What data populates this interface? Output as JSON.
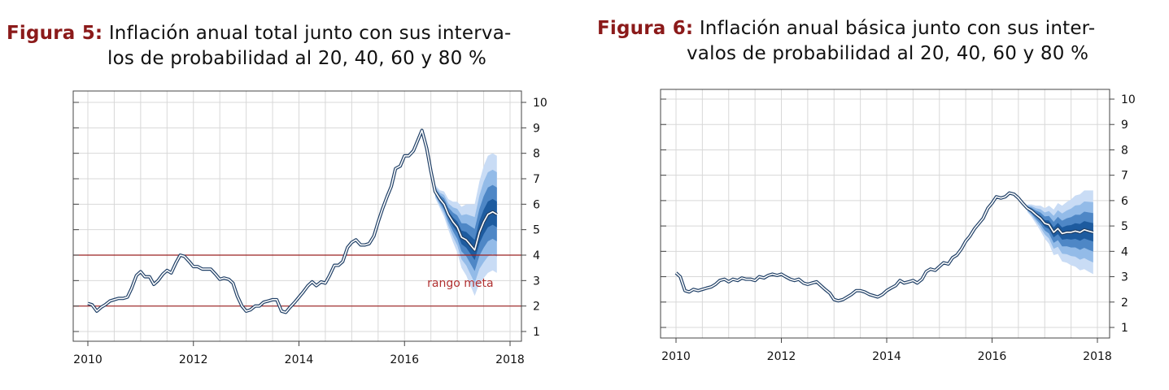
{
  "figures": [
    {
      "caption_label": "Figura 5:",
      "caption_line1": "Inflación anual total junto con sus interva-",
      "caption_line2": "los de probabilidad al 20, 40, 60 y 80 %",
      "chart_data": {
        "type": "line",
        "x_ticks": [
          2010,
          2012,
          2014,
          2016,
          2018
        ],
        "y_ticks": [
          1,
          2,
          3,
          4,
          5,
          6,
          7,
          8,
          9,
          10
        ],
        "xlim": [
          2010,
          2018
        ],
        "ylim": [
          1,
          10
        ],
        "grid": true,
        "annotation": "rango meta",
        "reference_lines": [
          2,
          4
        ],
        "series": [
          {
            "values": [
              [
                2010.0,
                2.1
              ],
              [
                2010.08,
                2.05
              ],
              [
                2010.17,
                1.8
              ],
              [
                2010.25,
                1.95
              ],
              [
                2010.33,
                2.05
              ],
              [
                2010.42,
                2.2
              ],
              [
                2010.5,
                2.25
              ],
              [
                2010.58,
                2.3
              ],
              [
                2010.67,
                2.3
              ],
              [
                2010.75,
                2.35
              ],
              [
                2010.83,
                2.7
              ],
              [
                2010.92,
                3.2
              ],
              [
                2011.0,
                3.35
              ],
              [
                2011.08,
                3.15
              ],
              [
                2011.17,
                3.15
              ],
              [
                2011.25,
                2.85
              ],
              [
                2011.33,
                3.0
              ],
              [
                2011.42,
                3.25
              ],
              [
                2011.5,
                3.4
              ],
              [
                2011.58,
                3.3
              ],
              [
                2011.67,
                3.7
              ],
              [
                2011.75,
                4.0
              ],
              [
                2011.83,
                3.95
              ],
              [
                2011.92,
                3.75
              ],
              [
                2012.0,
                3.55
              ],
              [
                2012.08,
                3.55
              ],
              [
                2012.17,
                3.45
              ],
              [
                2012.25,
                3.45
              ],
              [
                2012.33,
                3.45
              ],
              [
                2012.42,
                3.25
              ],
              [
                2012.5,
                3.05
              ],
              [
                2012.58,
                3.1
              ],
              [
                2012.67,
                3.05
              ],
              [
                2012.75,
                2.9
              ],
              [
                2012.83,
                2.4
              ],
              [
                2012.92,
                2.0
              ],
              [
                2013.0,
                1.8
              ],
              [
                2013.08,
                1.85
              ],
              [
                2013.17,
                2.0
              ],
              [
                2013.25,
                2.0
              ],
              [
                2013.33,
                2.15
              ],
              [
                2013.42,
                2.2
              ],
              [
                2013.5,
                2.25
              ],
              [
                2013.58,
                2.25
              ],
              [
                2013.67,
                1.8
              ],
              [
                2013.75,
                1.75
              ],
              [
                2013.83,
                1.95
              ],
              [
                2013.92,
                2.15
              ],
              [
                2014.0,
                2.35
              ],
              [
                2014.08,
                2.55
              ],
              [
                2014.17,
                2.8
              ],
              [
                2014.25,
                2.95
              ],
              [
                2014.33,
                2.8
              ],
              [
                2014.42,
                2.95
              ],
              [
                2014.5,
                2.9
              ],
              [
                2014.58,
                3.2
              ],
              [
                2014.67,
                3.6
              ],
              [
                2014.75,
                3.6
              ],
              [
                2014.83,
                3.75
              ],
              [
                2014.92,
                4.3
              ],
              [
                2015.0,
                4.5
              ],
              [
                2015.08,
                4.6
              ],
              [
                2015.17,
                4.4
              ],
              [
                2015.25,
                4.4
              ],
              [
                2015.33,
                4.45
              ],
              [
                2015.42,
                4.75
              ],
              [
                2015.5,
                5.3
              ],
              [
                2015.58,
                5.8
              ],
              [
                2015.67,
                6.3
              ],
              [
                2015.75,
                6.7
              ],
              [
                2015.83,
                7.4
              ],
              [
                2015.92,
                7.5
              ],
              [
                2016.0,
                7.9
              ],
              [
                2016.08,
                7.9
              ],
              [
                2016.17,
                8.1
              ],
              [
                2016.25,
                8.5
              ],
              [
                2016.33,
                8.9
              ],
              [
                2016.42,
                8.2
              ],
              [
                2016.5,
                7.3
              ],
              [
                2016.58,
                6.5
              ],
              [
                2016.67,
                6.2
              ],
              [
                2016.75,
                6.0
              ],
              [
                2016.83,
                5.6
              ],
              [
                2016.92,
                5.3
              ],
              [
                2017.0,
                5.1
              ],
              [
                2017.08,
                4.7
              ],
              [
                2017.17,
                4.6
              ],
              [
                2017.25,
                4.4
              ],
              [
                2017.33,
                4.2
              ],
              [
                2017.42,
                4.9
              ],
              [
                2017.5,
                5.3
              ],
              [
                2017.58,
                5.6
              ],
              [
                2017.67,
                5.7
              ],
              [
                2017.75,
                5.6
              ]
            ]
          }
        ],
        "fan": {
          "x": [
            2016.58,
            2016.67,
            2016.75,
            2016.83,
            2016.92,
            2017.0,
            2017.08,
            2017.17,
            2017.25,
            2017.33,
            2017.42,
            2017.5,
            2017.58,
            2017.67,
            2017.75
          ],
          "center": [
            6.5,
            6.2,
            6.0,
            5.6,
            5.3,
            5.1,
            4.7,
            4.6,
            4.4,
            4.2,
            4.9,
            5.3,
            5.6,
            5.7,
            5.6
          ],
          "half_widths": [
            0.25,
            0.35,
            0.5,
            0.6,
            0.8,
            1.0,
            1.2,
            1.4,
            1.6,
            1.8,
            2.0,
            2.2,
            2.3,
            2.3,
            2.3
          ]
        }
      }
    },
    {
      "caption_label": "Figura 6:",
      "caption_line1": "Inflación anual básica junto con sus inter-",
      "caption_line2": "valos de probabilidad al 20, 40, 60 y 80 %",
      "chart_data": {
        "type": "line",
        "x_ticks": [
          2010,
          2012,
          2014,
          2016,
          2018
        ],
        "y_ticks": [
          1,
          2,
          3,
          4,
          5,
          6,
          7,
          8,
          9,
          10
        ],
        "xlim": [
          2010,
          2018
        ],
        "ylim": [
          1,
          10
        ],
        "grid": true,
        "series": [
          {
            "values": [
              [
                2010.0,
                3.15
              ],
              [
                2010.08,
                3.0
              ],
              [
                2010.17,
                2.45
              ],
              [
                2010.25,
                2.4
              ],
              [
                2010.33,
                2.5
              ],
              [
                2010.42,
                2.45
              ],
              [
                2010.5,
                2.5
              ],
              [
                2010.58,
                2.55
              ],
              [
                2010.67,
                2.6
              ],
              [
                2010.75,
                2.7
              ],
              [
                2010.83,
                2.85
              ],
              [
                2010.92,
                2.9
              ],
              [
                2011.0,
                2.8
              ],
              [
                2011.08,
                2.9
              ],
              [
                2011.17,
                2.85
              ],
              [
                2011.25,
                2.95
              ],
              [
                2011.33,
                2.9
              ],
              [
                2011.42,
                2.9
              ],
              [
                2011.5,
                2.85
              ],
              [
                2011.58,
                3.0
              ],
              [
                2011.67,
                2.95
              ],
              [
                2011.75,
                3.05
              ],
              [
                2011.83,
                3.1
              ],
              [
                2011.92,
                3.05
              ],
              [
                2012.0,
                3.1
              ],
              [
                2012.08,
                3.0
              ],
              [
                2012.17,
                2.9
              ],
              [
                2012.25,
                2.85
              ],
              [
                2012.33,
                2.9
              ],
              [
                2012.42,
                2.75
              ],
              [
                2012.5,
                2.7
              ],
              [
                2012.58,
                2.75
              ],
              [
                2012.67,
                2.8
              ],
              [
                2012.75,
                2.65
              ],
              [
                2012.83,
                2.5
              ],
              [
                2012.92,
                2.35
              ],
              [
                2013.0,
                2.1
              ],
              [
                2013.08,
                2.05
              ],
              [
                2013.17,
                2.1
              ],
              [
                2013.25,
                2.2
              ],
              [
                2013.33,
                2.3
              ],
              [
                2013.42,
                2.45
              ],
              [
                2013.5,
                2.45
              ],
              [
                2013.58,
                2.4
              ],
              [
                2013.67,
                2.3
              ],
              [
                2013.75,
                2.25
              ],
              [
                2013.83,
                2.2
              ],
              [
                2013.92,
                2.3
              ],
              [
                2014.0,
                2.45
              ],
              [
                2014.08,
                2.55
              ],
              [
                2014.17,
                2.65
              ],
              [
                2014.25,
                2.85
              ],
              [
                2014.33,
                2.75
              ],
              [
                2014.42,
                2.8
              ],
              [
                2014.5,
                2.85
              ],
              [
                2014.58,
                2.75
              ],
              [
                2014.67,
                2.9
              ],
              [
                2014.75,
                3.2
              ],
              [
                2014.83,
                3.3
              ],
              [
                2014.92,
                3.25
              ],
              [
                2015.0,
                3.4
              ],
              [
                2015.08,
                3.55
              ],
              [
                2015.17,
                3.5
              ],
              [
                2015.25,
                3.75
              ],
              [
                2015.33,
                3.85
              ],
              [
                2015.42,
                4.1
              ],
              [
                2015.5,
                4.4
              ],
              [
                2015.58,
                4.6
              ],
              [
                2015.67,
                4.9
              ],
              [
                2015.75,
                5.1
              ],
              [
                2015.83,
                5.3
              ],
              [
                2015.92,
                5.7
              ],
              [
                2016.0,
                5.9
              ],
              [
                2016.08,
                6.15
              ],
              [
                2016.17,
                6.1
              ],
              [
                2016.25,
                6.15
              ],
              [
                2016.33,
                6.3
              ],
              [
                2016.42,
                6.25
              ],
              [
                2016.5,
                6.1
              ],
              [
                2016.58,
                5.9
              ],
              [
                2016.67,
                5.7
              ],
              [
                2016.75,
                5.6
              ],
              [
                2016.83,
                5.45
              ],
              [
                2016.92,
                5.3
              ],
              [
                2017.0,
                5.1
              ],
              [
                2017.08,
                5.05
              ],
              [
                2017.17,
                4.75
              ],
              [
                2017.25,
                4.9
              ],
              [
                2017.33,
                4.7
              ],
              [
                2017.42,
                4.75
              ],
              [
                2017.5,
                4.75
              ],
              [
                2017.58,
                4.8
              ],
              [
                2017.67,
                4.75
              ],
              [
                2017.75,
                4.85
              ],
              [
                2017.83,
                4.8
              ],
              [
                2017.92,
                4.75
              ]
            ]
          }
        ],
        "fan": {
          "x": [
            2016.67,
            2016.75,
            2016.83,
            2016.92,
            2017.0,
            2017.08,
            2017.17,
            2017.25,
            2017.33,
            2017.42,
            2017.5,
            2017.58,
            2017.67,
            2017.75,
            2017.83,
            2017.92
          ],
          "center": [
            5.7,
            5.6,
            5.45,
            5.3,
            5.1,
            5.05,
            4.75,
            4.9,
            4.7,
            4.75,
            4.75,
            4.8,
            4.75,
            4.85,
            4.8,
            4.75
          ],
          "half_widths": [
            0.15,
            0.25,
            0.35,
            0.5,
            0.6,
            0.75,
            0.9,
            1.0,
            1.1,
            1.2,
            1.3,
            1.4,
            1.5,
            1.55,
            1.6,
            1.65
          ]
        }
      }
    }
  ],
  "colors": {
    "line_dark": "#1f3f66",
    "line_light": "#ffffff",
    "fan": [
      "#c9dcf5",
      "#93bbe8",
      "#4e87c6",
      "#1d5b9f"
    ],
    "grid": "#d8d8d8",
    "frame": "#444444",
    "reference_line": "#9b2020",
    "annotation": "#b03030"
  }
}
